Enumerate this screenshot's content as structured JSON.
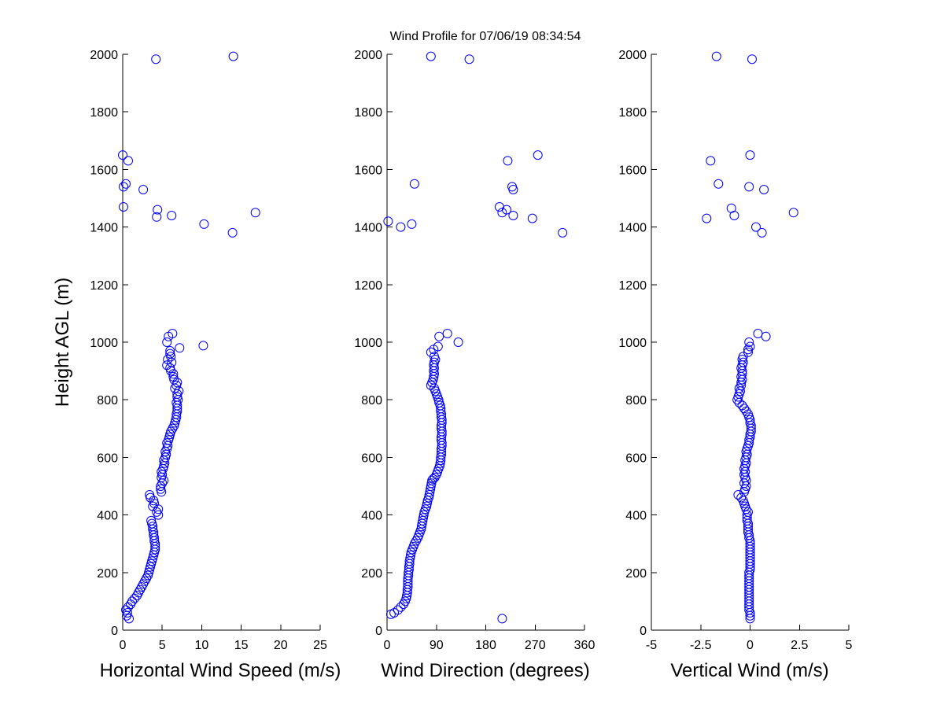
{
  "figure": {
    "title": "Wind Profile for  07/06/19 08:34:54",
    "background": "#ffffff",
    "marker_color": "#0000ff"
  },
  "chart_data": [
    {
      "type": "scatter",
      "xlabel": "Horizontal Wind Speed (m/s)",
      "ylabel": "Height AGL (m)",
      "xlim": [
        0,
        25
      ],
      "ylim": [
        0,
        2000
      ],
      "xticks": [
        "0",
        "5",
        "10",
        "15",
        "20",
        "25"
      ],
      "yticks": [
        "0",
        "200",
        "400",
        "600",
        "800",
        "1000",
        "1200",
        "1400",
        "1600",
        "1800",
        "2000"
      ],
      "grid": false,
      "points": [
        [
          0.8,
          40
        ],
        [
          0.5,
          50
        ],
        [
          0.6,
          60
        ],
        [
          0.4,
          70
        ],
        [
          0.7,
          80
        ],
        [
          1.0,
          90
        ],
        [
          1.2,
          100
        ],
        [
          1.5,
          110
        ],
        [
          1.8,
          120
        ],
        [
          2.0,
          130
        ],
        [
          2.2,
          140
        ],
        [
          2.4,
          150
        ],
        [
          2.6,
          160
        ],
        [
          2.8,
          170
        ],
        [
          3.0,
          180
        ],
        [
          3.2,
          190
        ],
        [
          3.3,
          200
        ],
        [
          3.4,
          210
        ],
        [
          3.5,
          220
        ],
        [
          3.6,
          230
        ],
        [
          3.7,
          240
        ],
        [
          3.8,
          250
        ],
        [
          3.9,
          260
        ],
        [
          4.0,
          270
        ],
        [
          4.1,
          280
        ],
        [
          4.1,
          290
        ],
        [
          4.1,
          300
        ],
        [
          4.0,
          310
        ],
        [
          4.0,
          320
        ],
        [
          3.9,
          330
        ],
        [
          3.9,
          340
        ],
        [
          3.8,
          350
        ],
        [
          3.8,
          360
        ],
        [
          3.7,
          370
        ],
        [
          3.6,
          380
        ],
        [
          4.5,
          400
        ],
        [
          4.3,
          410
        ],
        [
          4.5,
          420
        ],
        [
          3.8,
          430
        ],
        [
          4.0,
          440
        ],
        [
          3.9,
          450
        ],
        [
          3.5,
          460
        ],
        [
          3.4,
          470
        ],
        [
          4.9,
          480
        ],
        [
          4.8,
          490
        ],
        [
          4.8,
          500
        ],
        [
          5.0,
          510
        ],
        [
          5.2,
          520
        ],
        [
          4.9,
          530
        ],
        [
          5.0,
          540
        ],
        [
          4.9,
          550
        ],
        [
          5.1,
          560
        ],
        [
          5.2,
          570
        ],
        [
          5.3,
          580
        ],
        [
          5.2,
          590
        ],
        [
          5.4,
          600
        ],
        [
          5.5,
          610
        ],
        [
          5.4,
          620
        ],
        [
          5.6,
          630
        ],
        [
          5.7,
          640
        ],
        [
          5.6,
          650
        ],
        [
          5.8,
          660
        ],
        [
          5.9,
          670
        ],
        [
          6.0,
          680
        ],
        [
          6.1,
          690
        ],
        [
          6.3,
          700
        ],
        [
          6.5,
          710
        ],
        [
          6.6,
          720
        ],
        [
          6.7,
          730
        ],
        [
          6.8,
          740
        ],
        [
          6.8,
          750
        ],
        [
          6.9,
          760
        ],
        [
          6.9,
          770
        ],
        [
          6.9,
          780
        ],
        [
          6.8,
          790
        ],
        [
          7.0,
          800
        ],
        [
          6.9,
          810
        ],
        [
          6.9,
          820
        ],
        [
          7.1,
          830
        ],
        [
          6.6,
          840
        ],
        [
          6.8,
          850
        ],
        [
          6.9,
          860
        ],
        [
          6.5,
          870
        ],
        [
          6.4,
          880
        ],
        [
          6.4,
          890
        ],
        [
          6.1,
          900
        ],
        [
          6.0,
          910
        ],
        [
          5.6,
          920
        ],
        [
          6.2,
          930
        ],
        [
          5.7,
          940
        ],
        [
          6.1,
          950
        ],
        [
          6.0,
          960
        ],
        [
          6.0,
          970
        ],
        [
          7.2,
          980
        ],
        [
          10.2,
          988
        ],
        [
          5.6,
          1000
        ],
        [
          5.8,
          1020
        ],
        [
          6.3,
          1030
        ],
        [
          13.9,
          1380
        ],
        [
          10.3,
          1410
        ],
        [
          4.3,
          1435
        ],
        [
          6.2,
          1440
        ],
        [
          16.8,
          1450
        ],
        [
          4.4,
          1460
        ],
        [
          0.1,
          1470
        ],
        [
          2.6,
          1530
        ],
        [
          0.1,
          1540
        ],
        [
          0.4,
          1550
        ],
        [
          0.7,
          1630
        ],
        [
          0.0,
          1650
        ],
        [
          4.2,
          1983
        ],
        [
          14.0,
          1993
        ]
      ]
    },
    {
      "type": "scatter",
      "xlabel": "Wind Direction (degrees)",
      "ylabel": "",
      "xlim": [
        0,
        360
      ],
      "ylim": [
        0,
        2000
      ],
      "xticks": [
        "0",
        "90",
        "180",
        "270",
        "360"
      ],
      "yticks": [
        "0",
        "200",
        "400",
        "600",
        "800",
        "1000",
        "1200",
        "1400",
        "1600",
        "1800",
        "2000"
      ],
      "grid": false,
      "points": [
        [
          210,
          40
        ],
        [
          7,
          55
        ],
        [
          13,
          60
        ],
        [
          20,
          70
        ],
        [
          25,
          80
        ],
        [
          30,
          90
        ],
        [
          33,
          100
        ],
        [
          35,
          110
        ],
        [
          36,
          120
        ],
        [
          37,
          130
        ],
        [
          37,
          140
        ],
        [
          38,
          150
        ],
        [
          38,
          160
        ],
        [
          38,
          170
        ],
        [
          38,
          180
        ],
        [
          39,
          190
        ],
        [
          39,
          200
        ],
        [
          40,
          210
        ],
        [
          40,
          220
        ],
        [
          41,
          230
        ],
        [
          41,
          240
        ],
        [
          42,
          250
        ],
        [
          43,
          260
        ],
        [
          44,
          270
        ],
        [
          46,
          280
        ],
        [
          48,
          290
        ],
        [
          50,
          300
        ],
        [
          53,
          310
        ],
        [
          56,
          320
        ],
        [
          58,
          330
        ],
        [
          60,
          340
        ],
        [
          62,
          350
        ],
        [
          63,
          360
        ],
        [
          64,
          370
        ],
        [
          65,
          380
        ],
        [
          66,
          390
        ],
        [
          67,
          400
        ],
        [
          68,
          410
        ],
        [
          70,
          420
        ],
        [
          72,
          430
        ],
        [
          73,
          440
        ],
        [
          74,
          450
        ],
        [
          76,
          460
        ],
        [
          77,
          470
        ],
        [
          78,
          480
        ],
        [
          79,
          490
        ],
        [
          80,
          500
        ],
        [
          81,
          510
        ],
        [
          82,
          520
        ],
        [
          84,
          525
        ],
        [
          87,
          530
        ],
        [
          90,
          540
        ],
        [
          92,
          550
        ],
        [
          94,
          560
        ],
        [
          96,
          570
        ],
        [
          97,
          580
        ],
        [
          98,
          590
        ],
        [
          98,
          600
        ],
        [
          99,
          610
        ],
        [
          99,
          620
        ],
        [
          99,
          630
        ],
        [
          100,
          640
        ],
        [
          100,
          650
        ],
        [
          99,
          660
        ],
        [
          99,
          670
        ],
        [
          100,
          680
        ],
        [
          100,
          690
        ],
        [
          99,
          700
        ],
        [
          99,
          710
        ],
        [
          100,
          720
        ],
        [
          100,
          730
        ],
        [
          99,
          740
        ],
        [
          99,
          750
        ],
        [
          98,
          760
        ],
        [
          98,
          770
        ],
        [
          97,
          780
        ],
        [
          95,
          790
        ],
        [
          94,
          800
        ],
        [
          92,
          810
        ],
        [
          90,
          820
        ],
        [
          88,
          830
        ],
        [
          86,
          840
        ],
        [
          80,
          850
        ],
        [
          82,
          860
        ],
        [
          84,
          870
        ],
        [
          85,
          880
        ],
        [
          86,
          890
        ],
        [
          85,
          900
        ],
        [
          86,
          910
        ],
        [
          85,
          920
        ],
        [
          86,
          930
        ],
        [
          88,
          940
        ],
        [
          86,
          950
        ],
        [
          80,
          965
        ],
        [
          85,
          975
        ],
        [
          93,
          985
        ],
        [
          130,
          1000
        ],
        [
          95,
          1020
        ],
        [
          110,
          1030
        ],
        [
          25,
          1400
        ],
        [
          45,
          1410
        ],
        [
          320,
          1380
        ],
        [
          2,
          1420
        ],
        [
          265,
          1430
        ],
        [
          230,
          1440
        ],
        [
          210,
          1450
        ],
        [
          218,
          1460
        ],
        [
          205,
          1470
        ],
        [
          230,
          1530
        ],
        [
          228,
          1540
        ],
        [
          50,
          1550
        ],
        [
          220,
          1630
        ],
        [
          275,
          1650
        ],
        [
          80,
          1993
        ],
        [
          150,
          1983
        ]
      ]
    },
    {
      "type": "scatter",
      "xlabel": "Vertical Wind (m/s)",
      "ylabel": "",
      "xlim": [
        -5,
        5
      ],
      "ylim": [
        0,
        2000
      ],
      "xticks": [
        "-5",
        "-2.5",
        "0",
        "2.5",
        "5"
      ],
      "yticks": [
        "0",
        "200",
        "400",
        "600",
        "800",
        "1000",
        "1200",
        "1400",
        "1600",
        "1800",
        "2000"
      ],
      "grid": false,
      "points": [
        [
          0.0,
          40
        ],
        [
          0.0,
          50
        ],
        [
          0.0,
          60
        ],
        [
          -0.05,
          70
        ],
        [
          -0.05,
          80
        ],
        [
          -0.05,
          90
        ],
        [
          -0.05,
          100
        ],
        [
          -0.05,
          110
        ],
        [
          -0.05,
          120
        ],
        [
          -0.05,
          130
        ],
        [
          -0.05,
          140
        ],
        [
          -0.05,
          150
        ],
        [
          -0.05,
          160
        ],
        [
          -0.05,
          170
        ],
        [
          -0.05,
          180
        ],
        [
          -0.05,
          190
        ],
        [
          -0.05,
          200
        ],
        [
          0.0,
          210
        ],
        [
          0.0,
          220
        ],
        [
          0.0,
          230
        ],
        [
          0.0,
          240
        ],
        [
          0.0,
          250
        ],
        [
          0.0,
          260
        ],
        [
          0.0,
          270
        ],
        [
          0.0,
          280
        ],
        [
          0.0,
          290
        ],
        [
          0.0,
          300
        ],
        [
          0.0,
          310
        ],
        [
          -0.05,
          320
        ],
        [
          -0.05,
          330
        ],
        [
          -0.1,
          340
        ],
        [
          -0.1,
          350
        ],
        [
          -0.1,
          360
        ],
        [
          -0.1,
          370
        ],
        [
          -0.15,
          380
        ],
        [
          -0.15,
          390
        ],
        [
          -0.15,
          400
        ],
        [
          -0.1,
          410
        ],
        [
          -0.2,
          420
        ],
        [
          -0.25,
          430
        ],
        [
          -0.3,
          440
        ],
        [
          -0.35,
          450
        ],
        [
          -0.45,
          460
        ],
        [
          -0.6,
          470
        ],
        [
          -0.3,
          480
        ],
        [
          -0.25,
          490
        ],
        [
          -0.2,
          500
        ],
        [
          -0.3,
          510
        ],
        [
          -0.2,
          520
        ],
        [
          -0.25,
          530
        ],
        [
          -0.3,
          540
        ],
        [
          -0.25,
          550
        ],
        [
          -0.3,
          560
        ],
        [
          -0.25,
          570
        ],
        [
          -0.2,
          580
        ],
        [
          -0.25,
          590
        ],
        [
          -0.2,
          600
        ],
        [
          -0.15,
          610
        ],
        [
          -0.2,
          620
        ],
        [
          -0.15,
          630
        ],
        [
          -0.1,
          640
        ],
        [
          -0.05,
          650
        ],
        [
          -0.05,
          660
        ],
        [
          0.0,
          670
        ],
        [
          0.0,
          680
        ],
        [
          0.05,
          690
        ],
        [
          0.05,
          700
        ],
        [
          0.05,
          710
        ],
        [
          0.0,
          720
        ],
        [
          0.0,
          730
        ],
        [
          -0.05,
          740
        ],
        [
          -0.1,
          750
        ],
        [
          -0.2,
          760
        ],
        [
          -0.3,
          770
        ],
        [
          -0.4,
          780
        ],
        [
          -0.55,
          790
        ],
        [
          -0.65,
          800
        ],
        [
          -0.6,
          810
        ],
        [
          -0.55,
          820
        ],
        [
          -0.5,
          830
        ],
        [
          -0.55,
          840
        ],
        [
          -0.45,
          850
        ],
        [
          -0.45,
          860
        ],
        [
          -0.4,
          870
        ],
        [
          -0.45,
          880
        ],
        [
          -0.4,
          890
        ],
        [
          -0.4,
          900
        ],
        [
          -0.45,
          910
        ],
        [
          -0.4,
          920
        ],
        [
          -0.35,
          930
        ],
        [
          -0.4,
          940
        ],
        [
          -0.35,
          950
        ],
        [
          -0.1,
          965
        ],
        [
          -0.1,
          975
        ],
        [
          0.0,
          985
        ],
        [
          -0.05,
          1000
        ],
        [
          0.8,
          1020
        ],
        [
          0.4,
          1030
        ],
        [
          0.6,
          1380
        ],
        [
          0.3,
          1400
        ],
        [
          -2.2,
          1430
        ],
        [
          -0.8,
          1440
        ],
        [
          2.2,
          1450
        ],
        [
          -0.95,
          1465
        ],
        [
          0.7,
          1530
        ],
        [
          -0.05,
          1540
        ],
        [
          -1.6,
          1550
        ],
        [
          -2.0,
          1630
        ],
        [
          0.0,
          1650
        ],
        [
          -1.7,
          1993
        ],
        [
          0.1,
          1983
        ]
      ]
    }
  ]
}
